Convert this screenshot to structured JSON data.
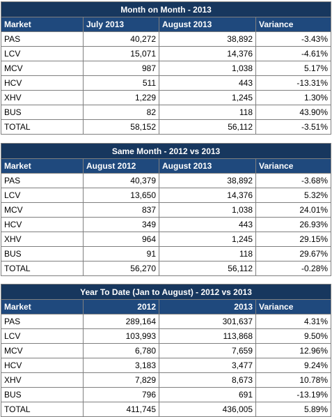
{
  "tables": [
    {
      "title": "Month on Month - 2013",
      "headers": [
        "Market",
        "July 2013",
        "August 2013",
        "Variance"
      ],
      "header_align": [
        "left",
        "left",
        "left",
        "left"
      ],
      "rows": [
        [
          "PAS",
          "40,272",
          "38,892",
          "-3.43%"
        ],
        [
          "LCV",
          "15,071",
          "14,376",
          "-4.61%"
        ],
        [
          "MCV",
          "987",
          "1,038",
          "5.17%"
        ],
        [
          "HCV",
          "511",
          "443",
          "-13.31%"
        ],
        [
          "XHV",
          "1,229",
          "1,245",
          "1.30%"
        ],
        [
          "BUS",
          "82",
          "118",
          "43.90%"
        ],
        [
          "TOTAL",
          "58,152",
          "56,112",
          "-3.51%"
        ]
      ]
    },
    {
      "title": "Same Month - 2012 vs 2013",
      "headers": [
        "Market",
        "August 2012",
        "August 2013",
        "Variance"
      ],
      "header_align": [
        "left",
        "left",
        "left",
        "left"
      ],
      "rows": [
        [
          "PAS",
          "40,379",
          "38,892",
          "-3.68%"
        ],
        [
          "LCV",
          "13,650",
          "14,376",
          "5.32%"
        ],
        [
          "MCV",
          "837",
          "1,038",
          "24.01%"
        ],
        [
          "HCV",
          "349",
          "443",
          "26.93%"
        ],
        [
          "XHV",
          "964",
          "1,245",
          "29.15%"
        ],
        [
          "BUS",
          "91",
          "118",
          "29.67%"
        ],
        [
          "TOTAL",
          "56,270",
          "56,112",
          "-0.28%"
        ]
      ]
    },
    {
      "title": "Year To Date (Jan to August) - 2012 vs 2013",
      "headers": [
        "Market",
        "2012",
        "2013",
        "Variance"
      ],
      "header_align": [
        "left",
        "right",
        "right",
        "left"
      ],
      "rows": [
        [
          "PAS",
          "289,164",
          "301,637",
          "4.31%"
        ],
        [
          "LCV",
          "103,993",
          "113,868",
          "9.50%"
        ],
        [
          "MCV",
          "6,780",
          "7,659",
          "12.96%"
        ],
        [
          "HCV",
          "3,183",
          "3,477",
          "9.24%"
        ],
        [
          "XHV",
          "7,829",
          "8,673",
          "10.78%"
        ],
        [
          "BUS",
          "796",
          "691",
          "-13.19%"
        ],
        [
          "TOTAL",
          "411,745",
          "436,005",
          "5.89%"
        ]
      ]
    }
  ]
}
